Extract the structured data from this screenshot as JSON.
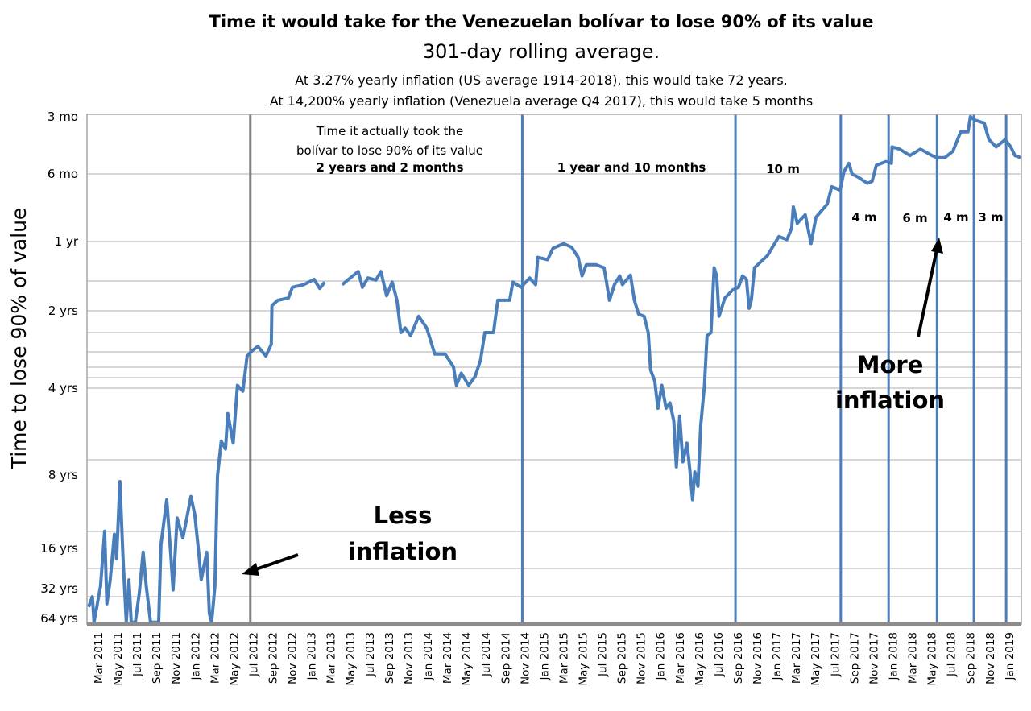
{
  "chart_data": {
    "type": "line",
    "title": "Time it would take for the Venezuelan bolívar to lose 90% of its value",
    "subtitle": "301-day rolling average.",
    "notes": [
      "At 3.27% yearly inflation (US average 1914-2018), this would take 72 years.",
      "At 14,200% yearly inflation (Venezuela average Q4 2017), this would take 5 months"
    ],
    "ylabel": "Time to lose 90% of value",
    "xlabel": "",
    "y_scale": "log (reversed: shorter time at top)",
    "y_ticks": [
      {
        "label": "3 mo",
        "value": 0.25
      },
      {
        "label": "6 mo",
        "value": 0.5
      },
      {
        "label": "1 yr",
        "value": 1
      },
      {
        "label": "2 yrs",
        "value": 2
      },
      {
        "label": "4 yrs",
        "value": 4
      },
      {
        "label": "8 yrs",
        "value": 8
      },
      {
        "label": "16 yrs",
        "value": 16
      },
      {
        "label": "32 yrs",
        "value": 32
      },
      {
        "label": "64 yrs",
        "value": 64
      }
    ],
    "x_range": [
      "2011-02-01",
      "2019-02-08"
    ],
    "x_ticks": [
      "Mar 2011",
      "May 2011",
      "Jul 2011",
      "Sep 2011",
      "Nov 2011",
      "Jan 2012",
      "Mar 2012",
      "May 2012",
      "Jul 2012",
      "Sep 2012",
      "Nov 2012",
      "Jan 2013",
      "Mar 2013",
      "May 2013",
      "Jul 2013",
      "Sep 2013",
      "Nov 2013",
      "Jan 2014",
      "Mar 2014",
      "May 2014",
      "Jul 2014",
      "Sep 2014",
      "Nov 2014",
      "Jan 2015",
      "Mar 2015",
      "May 2015",
      "Jul 2015",
      "Sep 2015",
      "Nov 2015",
      "Jan 2016",
      "Mar 2016",
      "May 2016",
      "Jul 2016",
      "Sep 2016",
      "Nov 2016",
      "Jan 2017",
      "Mar 2017",
      "May 2017",
      "Jul 2017",
      "Sep 2017",
      "Nov 2017",
      "Jan 2018",
      "Mar 2018",
      "May 2018",
      "Jul 2018",
      "Sep 2018",
      "Nov 2018",
      "Jan 2019"
    ],
    "grid": true,
    "legend": "none",
    "colors": {
      "series": "#4a7ebb",
      "marker_gray": "#7f7f7f",
      "marker_blue": "#4a7ebb",
      "grid": "#c8c8c8",
      "axis": "#8c8c8c"
    },
    "series": [
      {
        "unit": "years",
        "points": [
          [
            "2011-02-01",
            49
          ],
          [
            "2011-02-13",
            38.6
          ],
          [
            "2011-02-18",
            70
          ],
          [
            "2011-03-08",
            30.7
          ],
          [
            "2011-03-21",
            13.6
          ],
          [
            "2011-03-28",
            45.6
          ],
          [
            "2011-04-08",
            27.5
          ],
          [
            "2011-04-21",
            14
          ],
          [
            "2011-04-28",
            19.2
          ],
          [
            "2011-05-08",
            8.5
          ],
          [
            "2011-05-18",
            19.2
          ],
          [
            "2011-05-28",
            70
          ],
          [
            "2011-06-06",
            27.5
          ],
          [
            "2011-06-13",
            70
          ],
          [
            "2011-06-26",
            70
          ],
          [
            "2011-07-08",
            35.8
          ],
          [
            "2011-07-20",
            17.1
          ],
          [
            "2011-07-30",
            30.7
          ],
          [
            "2011-08-13",
            70
          ],
          [
            "2011-09-08",
            70
          ],
          [
            "2011-09-15",
            15.5
          ],
          [
            "2011-10-03",
            10.1
          ],
          [
            "2011-10-15",
            17.1
          ],
          [
            "2011-10-23",
            33
          ],
          [
            "2011-11-05",
            12
          ],
          [
            "2011-11-23",
            14.5
          ],
          [
            "2011-12-05",
            12
          ],
          [
            "2011-12-18",
            9.8
          ],
          [
            "2011-12-30",
            11.6
          ],
          [
            "2012-01-12",
            17.1
          ],
          [
            "2012-01-20",
            27.5
          ],
          [
            "2012-02-07",
            17.1
          ],
          [
            "2012-02-15",
            57
          ],
          [
            "2012-02-22",
            70
          ],
          [
            "2012-03-02",
            30.7
          ],
          [
            "2012-03-10",
            8.1
          ],
          [
            "2012-03-22",
            6.1
          ],
          [
            "2012-04-05",
            6.5
          ],
          [
            "2012-04-12",
            4.9
          ],
          [
            "2012-04-29",
            6.2
          ],
          [
            "2012-05-12",
            3.9
          ],
          [
            "2012-05-29",
            4.1
          ],
          [
            "2012-06-12",
            3.0
          ],
          [
            "2012-06-27",
            2.87
          ],
          [
            "2012-07-15",
            2.75
          ],
          [
            "2012-08-10",
            3.0
          ],
          [
            "2012-08-27",
            2.7
          ],
          [
            "2012-08-29",
            1.9
          ],
          [
            "2012-09-17",
            1.8
          ],
          [
            "2012-10-20",
            1.76
          ],
          [
            "2012-11-02",
            1.58
          ],
          [
            "2012-12-07",
            1.54
          ],
          [
            "2013-01-09",
            1.46
          ],
          [
            "2013-01-27",
            1.6
          ],
          [
            "2013-02-12",
            1.5
          ],
          null,
          [
            "2013-04-06",
            1.54
          ],
          [
            "2013-04-26",
            1.46
          ],
          [
            "2013-05-26",
            1.35
          ],
          [
            "2013-06-09",
            1.58
          ],
          [
            "2013-06-26",
            1.44
          ],
          [
            "2013-07-21",
            1.47
          ],
          [
            "2013-08-06",
            1.35
          ],
          [
            "2013-08-24",
            1.72
          ],
          [
            "2013-09-11",
            1.5
          ],
          [
            "2013-09-26",
            1.8
          ],
          [
            "2013-10-08",
            2.43
          ],
          [
            "2013-10-21",
            2.33
          ],
          [
            "2013-11-08",
            2.5
          ],
          [
            "2013-12-03",
            2.1
          ],
          [
            "2013-12-28",
            2.33
          ],
          [
            "2014-01-23",
            2.95
          ],
          [
            "2014-02-25",
            2.95
          ],
          [
            "2014-03-21",
            3.3
          ],
          [
            "2014-03-30",
            3.9
          ],
          [
            "2014-04-15",
            3.5
          ],
          [
            "2014-05-08",
            3.9
          ],
          [
            "2014-05-28",
            3.6
          ],
          [
            "2014-06-15",
            3.1
          ],
          [
            "2014-06-28",
            2.43
          ],
          [
            "2014-07-25",
            2.43
          ],
          [
            "2014-08-08",
            1.8
          ],
          [
            "2014-09-15",
            1.8
          ],
          [
            "2014-09-25",
            1.5
          ],
          [
            "2014-10-20",
            1.58
          ],
          [
            "2014-11-17",
            1.44
          ],
          [
            "2014-12-05",
            1.54
          ],
          [
            "2014-12-12",
            1.17
          ],
          [
            "2015-01-12",
            1.2
          ],
          [
            "2015-01-29",
            1.07
          ],
          [
            "2015-03-02",
            1.02
          ],
          [
            "2015-03-27",
            1.06
          ],
          [
            "2015-04-17",
            1.17
          ],
          [
            "2015-04-29",
            1.41
          ],
          [
            "2015-05-12",
            1.26
          ],
          [
            "2015-06-12",
            1.26
          ],
          [
            "2015-07-07",
            1.3
          ],
          [
            "2015-07-24",
            1.8
          ],
          [
            "2015-08-09",
            1.54
          ],
          [
            "2015-08-26",
            1.41
          ],
          [
            "2015-09-04",
            1.54
          ],
          [
            "2015-09-29",
            1.4
          ],
          [
            "2015-10-11",
            1.8
          ],
          [
            "2015-10-24",
            2.06
          ],
          [
            "2015-11-11",
            2.1
          ],
          [
            "2015-11-24",
            2.43
          ],
          [
            "2015-12-01",
            3.4
          ],
          [
            "2015-12-14",
            3.75
          ],
          [
            "2015-12-24",
            4.7
          ],
          [
            "2016-01-06",
            3.9
          ],
          [
            "2016-01-19",
            4.7
          ],
          [
            "2016-02-01",
            4.5
          ],
          [
            "2016-02-13",
            5.2
          ],
          [
            "2016-02-21",
            7.5
          ],
          [
            "2016-03-01",
            5.0
          ],
          [
            "2016-03-11",
            7.2
          ],
          [
            "2016-03-24",
            6.2
          ],
          [
            "2016-04-03",
            7.8
          ],
          [
            "2016-04-11",
            10.1
          ],
          [
            "2016-04-18",
            7.8
          ],
          [
            "2016-04-28",
            8.9
          ],
          [
            "2016-05-06",
            5.4
          ],
          [
            "2016-05-18",
            3.9
          ],
          [
            "2016-05-26",
            2.5
          ],
          [
            "2016-06-08",
            2.43
          ],
          [
            "2016-06-18",
            1.3
          ],
          [
            "2016-06-26",
            1.41
          ],
          [
            "2016-07-03",
            2.1
          ],
          [
            "2016-07-21",
            1.76
          ],
          [
            "2016-08-16",
            1.62
          ],
          [
            "2016-09-03",
            1.58
          ],
          [
            "2016-09-16",
            1.41
          ],
          [
            "2016-09-28",
            1.46
          ],
          [
            "2016-10-06",
            1.95
          ],
          [
            "2016-10-13",
            1.8
          ],
          [
            "2016-10-23",
            1.3
          ],
          [
            "2016-12-03",
            1.15
          ],
          [
            "2017-01-08",
            0.95
          ],
          [
            "2017-02-03",
            0.98
          ],
          [
            "2017-02-18",
            0.87
          ],
          [
            "2017-02-23",
            0.7
          ],
          [
            "2017-03-05",
            0.83
          ],
          [
            "2017-03-30",
            0.76
          ],
          [
            "2017-04-18",
            1.02
          ],
          [
            "2017-05-03",
            0.78
          ],
          [
            "2017-06-08",
            0.68
          ],
          [
            "2017-06-22",
            0.57
          ],
          [
            "2017-07-18",
            0.59
          ],
          [
            "2017-07-30",
            0.486
          ],
          [
            "2017-08-15",
            0.44
          ],
          [
            "2017-08-25",
            0.5
          ],
          [
            "2017-09-17",
            0.52
          ],
          [
            "2017-10-12",
            0.55
          ],
          [
            "2017-10-27",
            0.54
          ],
          [
            "2017-11-10",
            0.45
          ],
          [
            "2017-12-10",
            0.43
          ],
          [
            "2017-12-27",
            0.44
          ],
          [
            "2017-12-29",
            0.36
          ],
          [
            "2018-01-22",
            0.37
          ],
          [
            "2018-02-24",
            0.4
          ],
          [
            "2018-03-27",
            0.37
          ],
          [
            "2018-05-02",
            0.4
          ],
          [
            "2018-05-17",
            0.41
          ],
          [
            "2018-06-12",
            0.41
          ],
          [
            "2018-07-07",
            0.38
          ],
          [
            "2018-08-01",
            0.3
          ],
          [
            "2018-08-24",
            0.3
          ],
          [
            "2018-09-01",
            0.25
          ],
          [
            "2018-09-14",
            0.26
          ],
          [
            "2018-10-14",
            0.27
          ],
          [
            "2018-10-29",
            0.33
          ],
          [
            "2018-11-21",
            0.36
          ],
          [
            "2018-12-19",
            0.33
          ],
          [
            "2019-01-06",
            0.36
          ],
          [
            "2019-01-19",
            0.4
          ],
          [
            "2019-02-06",
            0.41
          ]
        ]
      }
    ],
    "period_markers": [
      {
        "date": "2012-06-22",
        "color": "#7f7f7f"
      },
      {
        "date": "2014-10-24",
        "color": "#4a7ebb"
      },
      {
        "date": "2016-08-24",
        "color": "#4a7ebb"
      },
      {
        "date": "2017-07-20",
        "color": "#4a7ebb"
      },
      {
        "date": "2017-12-18",
        "color": "#4a7ebb"
      },
      {
        "date": "2018-05-18",
        "color": "#4a7ebb"
      },
      {
        "date": "2018-09-12",
        "color": "#4a7ebb"
      },
      {
        "date": "2018-12-22",
        "color": "#4a7ebb"
      }
    ],
    "annotations": {
      "period_intro": [
        "Time it actually took the",
        "bolívar to lose 90% of its value"
      ],
      "periods": [
        "2 years and 2 months",
        "1 year and 10 months",
        "10 m",
        "4 m",
        "6 m",
        "4 m",
        "3 m"
      ],
      "less_inflation": [
        "Less",
        "inflation"
      ],
      "more_inflation": [
        "More",
        "inflation"
      ]
    }
  }
}
